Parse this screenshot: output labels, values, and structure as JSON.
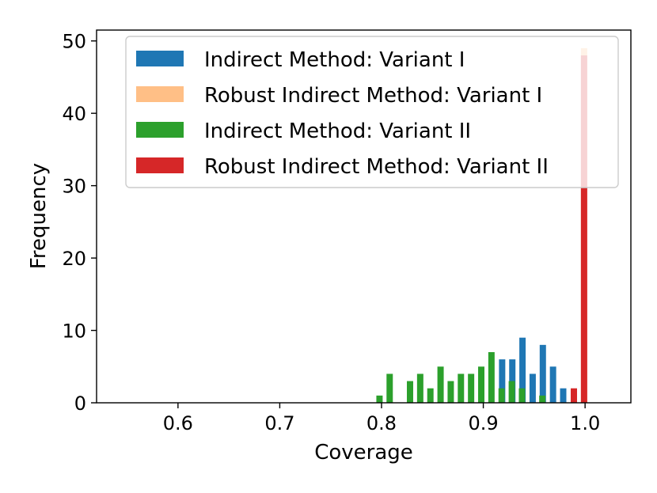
{
  "chart_data": {
    "type": "bar",
    "xlabel": "Coverage",
    "ylabel": "Frequency",
    "xlim": [
      0.52,
      1.045
    ],
    "ylim": [
      0,
      51.5
    ],
    "bin_width": 0.0062,
    "xticks": [
      "0.6",
      "0.7",
      "0.8",
      "0.9",
      "1.0"
    ],
    "xtick_values": [
      0.6,
      0.7,
      0.8,
      0.9,
      1.0
    ],
    "yticks": [
      "0",
      "10",
      "20",
      "30",
      "40",
      "50"
    ],
    "ytick_values": [
      0,
      10,
      20,
      30,
      40,
      50
    ],
    "grid": false,
    "legend_position": "top-right",
    "series": [
      {
        "name": "Indirect Method: Variant I",
        "color": "#1f77b4",
        "opacity": 1,
        "x": [
          0.9185,
          0.9285,
          0.9385,
          0.9485,
          0.9585,
          0.9685,
          0.9785
        ],
        "values": [
          6,
          6,
          9,
          4,
          8,
          5,
          2
        ]
      },
      {
        "name": "Robust Indirect Method: Variant I",
        "color": "#ff7f0e",
        "opacity": 0.5,
        "x": [
          0.999
        ],
        "values": [
          49
        ]
      },
      {
        "name": "Indirect Method: Variant II",
        "color": "#2ca02c",
        "opacity": 1,
        "x": [
          0.798,
          0.808,
          0.828,
          0.838,
          0.848,
          0.858,
          0.868,
          0.878,
          0.888,
          0.898,
          0.908,
          0.918,
          0.928,
          0.938,
          0.958
        ],
        "values": [
          1,
          4,
          3,
          4,
          2,
          5,
          3,
          4,
          4,
          5,
          7,
          2,
          3,
          2,
          1
        ]
      },
      {
        "name": "Robust Indirect Method: Variant II",
        "color": "#d62728",
        "opacity": 1,
        "x": [
          0.989,
          0.999
        ],
        "values": [
          2,
          48
        ]
      }
    ]
  }
}
